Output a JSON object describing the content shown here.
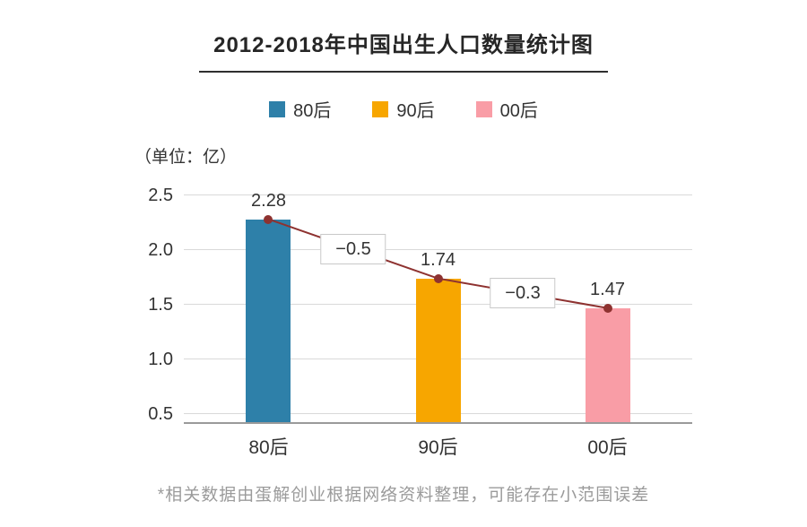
{
  "title": "2012-2018年中国出生人口数量统计图",
  "unit_label": "（单位：亿）",
  "footnote": "*相关数据由蛋解创业根据网络资料整理，可能存在小范围误差",
  "chart_data": {
    "type": "bar",
    "title": "2012-2018年中国出生人口数量统计图",
    "categories": [
      "80后",
      "90后",
      "00后"
    ],
    "values": [
      2.28,
      1.74,
      1.47
    ],
    "data_labels": [
      "2.28",
      "1.74",
      "1.47"
    ],
    "bar_colors": [
      "#2e80a9",
      "#f7a600",
      "#f99da6"
    ],
    "diff_annotations": [
      "−0.5",
      "−0.3"
    ],
    "line_color": "#8e3230",
    "y_ticks": [
      0.5,
      1.0,
      1.5,
      2.0,
      2.5
    ],
    "ylim": [
      0.43,
      2.62
    ],
    "unit": "亿",
    "grid": true,
    "legend_position": "top",
    "legend": [
      {
        "label": "80后",
        "color": "#2e80a9"
      },
      {
        "label": "90后",
        "color": "#f7a600"
      },
      {
        "label": "00后",
        "color": "#f99da6"
      }
    ]
  }
}
